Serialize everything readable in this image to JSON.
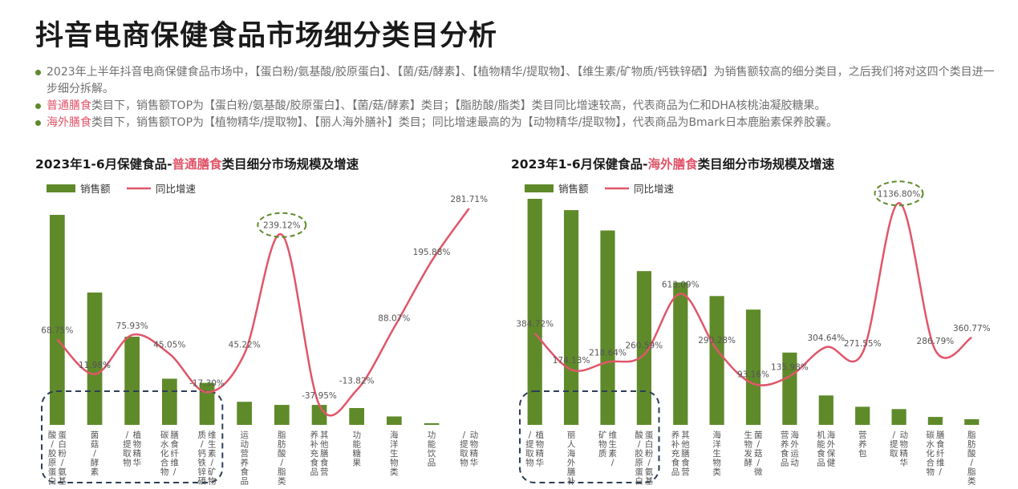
{
  "title": "抖音电商保健食品市场细分类目分析",
  "bullets": [
    {
      "parts": [
        {
          "text": "2023年上半年抖音电商保健食品市场中，【蛋白粉/氨基酸/胶原蛋白】、【菌/菇/酵素】、【植物精华/提取物】、【维生素/矿物质/钙铁锌硒】为销售额较高的细分类目，之后我们将对这四个类目进一步细分拆解。",
          "hl": false
        }
      ]
    },
    {
      "parts": [
        {
          "text": "普通膳食",
          "hl": true
        },
        {
          "text": "类目下，销售额TOP为【蛋白粉/氨基酸/胶原蛋白】、【菌/菇/酵素】类目；【脂肪酸/脂类】类目同比增速较高，代表商品为仁和DHA核桃油凝胶糖果。",
          "hl": false
        }
      ]
    },
    {
      "parts": [
        {
          "text": "海外膳食",
          "hl": true
        },
        {
          "text": "类目下，销售额TOP为【植物精华/提取物】、【丽人海外膳补】类目；同比增速最高的为【动物精华/提取物】，代表商品为Bmark日本鹿胎素保养胶囊。",
          "hl": false
        }
      ]
    }
  ],
  "colors": {
    "bar": "#5f8a2a",
    "line": "#e0566a",
    "highlight": "#e0566a",
    "dash_box": "#2e3e55",
    "dash_circle": "#5f8a2a"
  },
  "chart_data": [
    {
      "type": "bar",
      "title_parts": [
        {
          "text": "2023年1-6月保健食品-",
          "hl": false
        },
        {
          "text": "普通膳食",
          "hl": true
        },
        {
          "text": "类目细分市场规模及增速",
          "hl": false
        }
      ],
      "legend": {
        "bar": "销售额",
        "line": "同比增速"
      },
      "categories": [
        "蛋白粉/氨基酸/胶原蛋白",
        "菌菇/酵素",
        "植物精华/提取物",
        "膳食纤维/碳水化合物",
        "维生素/矿物质/钙铁锌硒",
        "运动营养食品",
        "脂肪酸/脂类",
        "其他膳食营养补充食品",
        "功能糖果",
        "海洋生物类",
        "功能饮品",
        "动物精华/提取物"
      ],
      "series": [
        {
          "name": "销售额",
          "kind": "bar",
          "values": [
            100,
            63,
            42,
            22,
            20,
            11,
            9.5,
            9.5,
            8,
            4,
            0.8,
            0
          ]
        },
        {
          "name": "同比增速",
          "kind": "line",
          "values": [
            68.75,
            11.98,
            75.93,
            45.05,
            -17.3,
            45.22,
            239.12,
            -37.95,
            -13.82,
            88.07,
            195.88,
            281.71
          ]
        }
      ],
      "labels": [
        "68.75%",
        "11.98%",
        "75.93%",
        "45.05%",
        "-17.30%",
        "45.22%",
        "239.12%",
        "-37.95%",
        "-13.82%",
        "88.07%",
        "195.88%",
        "281.71%"
      ],
      "ylim_bar": [
        0,
        100
      ],
      "ylim_line": [
        -60,
        300
      ],
      "highlight_label_index": 6,
      "boxed_categories": [
        0,
        4
      ]
    },
    {
      "type": "bar",
      "title_parts": [
        {
          "text": "2023年1-6月保健食品-",
          "hl": false
        },
        {
          "text": "海外膳食",
          "hl": true
        },
        {
          "text": "类目细分市场规模及增速",
          "hl": false
        }
      ],
      "legend": {
        "bar": "销售额",
        "line": "同比增速"
      },
      "categories": [
        "植物精华/提取物",
        "丽人海外膳补",
        "维生素/矿物质",
        "蛋白粉/氨基酸/胶原蛋白",
        "其他膳食营养补充食品",
        "海洋生物类",
        "菌/菇/微生物发酵",
        "海外运动营养食品",
        "海外保健机能食品",
        "营养包",
        "动物精华/提取",
        "膳食纤维/碳水化合物",
        "脂肪酸/脂类"
      ],
      "series": [
        {
          "name": "销售额",
          "kind": "bar",
          "values": [
            100,
            95,
            86,
            68,
            63,
            57,
            51,
            32,
            13,
            8,
            7,
            3.5,
            2.5
          ]
        },
        {
          "name": "同比增速",
          "kind": "line",
          "values": [
            384.72,
            174.13,
            218.64,
            260.59,
            613.09,
            290.28,
            93.16,
            135.98,
            304.64,
            271.55,
            1136.8,
            286.79,
            360.77
          ]
        }
      ],
      "labels": [
        "384.72%",
        "174.13%",
        "218.64%",
        "260.59%",
        "613.09%",
        "290.28%",
        "93.16%",
        "135.98%",
        "304.64%",
        "271.55%",
        "1136.80%",
        "286.79%",
        "360.77%"
      ],
      "ylim_bar": [
        0,
        100
      ],
      "ylim_line": [
        -200,
        1180
      ],
      "highlight_label_index": 10,
      "boxed_categories": [
        0,
        3
      ]
    }
  ]
}
